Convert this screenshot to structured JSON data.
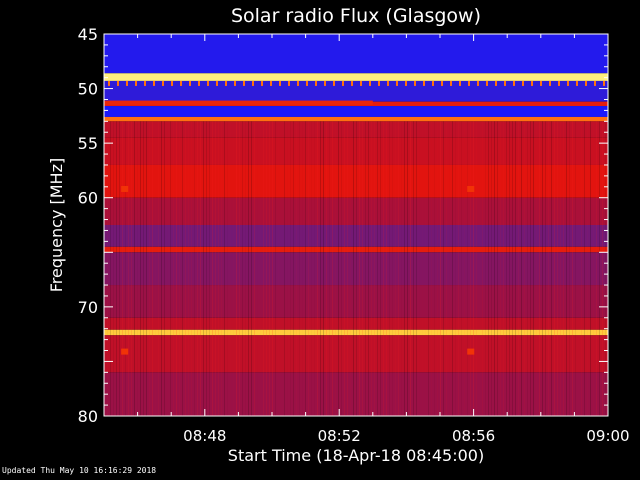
{
  "chart_data": {
    "type": "heatmap",
    "title": "Solar radio Flux (Glasgow)",
    "xlabel": "Start Time (18-Apr-18 08:45:00)",
    "ylabel": "Frequency [MHz]",
    "x_start": "08:45",
    "x_end": "09:00",
    "xlim": [
      0,
      15
    ],
    "x_unit": "minutes after 08:45",
    "ylim": [
      45,
      80
    ],
    "x_ticks": [
      {
        "value": 3,
        "label": "08:48"
      },
      {
        "value": 7,
        "label": "08:52"
      },
      {
        "value": 11,
        "label": "08:56"
      },
      {
        "value": 15,
        "label": "09:00"
      }
    ],
    "y_ticks": [
      {
        "value": 45,
        "label": "45"
      },
      {
        "value": 50,
        "label": "50"
      },
      {
        "value": 55,
        "label": "55"
      },
      {
        "value": 60,
        "label": "60"
      },
      {
        "value": 70,
        "label": "70"
      },
      {
        "value": 80,
        "label": "80"
      }
    ],
    "colormap": [
      "#000060",
      "#1818ff",
      "#5020a0",
      "#a01040",
      "#e01010",
      "#ff5000",
      "#ffd040",
      "#ffffa0"
    ],
    "bands": [
      {
        "from": 45.0,
        "to": 48.6,
        "level": 0.17
      },
      {
        "from": 48.6,
        "to": 49.3,
        "level": 0.95
      },
      {
        "from": 49.3,
        "to": 51.2,
        "level": 0.2
      },
      {
        "from": 51.2,
        "to": 51.6,
        "level": 0.6
      },
      {
        "from": 51.6,
        "to": 52.6,
        "level": 0.15
      },
      {
        "from": 52.6,
        "to": 53.0,
        "level": 0.75
      },
      {
        "from": 53.0,
        "to": 54.5,
        "level": 0.5
      },
      {
        "from": 54.5,
        "to": 57.0,
        "level": 0.52
      },
      {
        "from": 57.0,
        "to": 60.0,
        "level": 0.58
      },
      {
        "from": 60.0,
        "to": 62.5,
        "level": 0.45
      },
      {
        "from": 62.5,
        "to": 64.5,
        "level": 0.35
      },
      {
        "from": 64.5,
        "to": 65.0,
        "level": 0.6
      },
      {
        "from": 65.0,
        "to": 68.0,
        "level": 0.38
      },
      {
        "from": 68.0,
        "to": 71.0,
        "level": 0.42
      },
      {
        "from": 71.0,
        "to": 72.1,
        "level": 0.5
      },
      {
        "from": 72.1,
        "to": 72.6,
        "level": 0.85
      },
      {
        "from": 72.6,
        "to": 76.0,
        "level": 0.5
      },
      {
        "from": 76.0,
        "to": 80.0,
        "level": 0.42
      }
    ],
    "partial_bands": [
      {
        "from": 51.1,
        "to": 51.5,
        "x_from": 0,
        "x_to": 8.0,
        "level": 0.62
      }
    ],
    "spots": [
      {
        "x": 0.6,
        "y": 59.2,
        "level": 0.65
      },
      {
        "x": 10.9,
        "y": 59.2,
        "level": 0.65
      },
      {
        "x": 0.6,
        "y": 74.1,
        "level": 0.65
      },
      {
        "x": 10.9,
        "y": 74.1,
        "level": 0.65
      }
    ]
  },
  "footer": {
    "updated": "Updated Thu May 10 16:16:29 2018"
  }
}
